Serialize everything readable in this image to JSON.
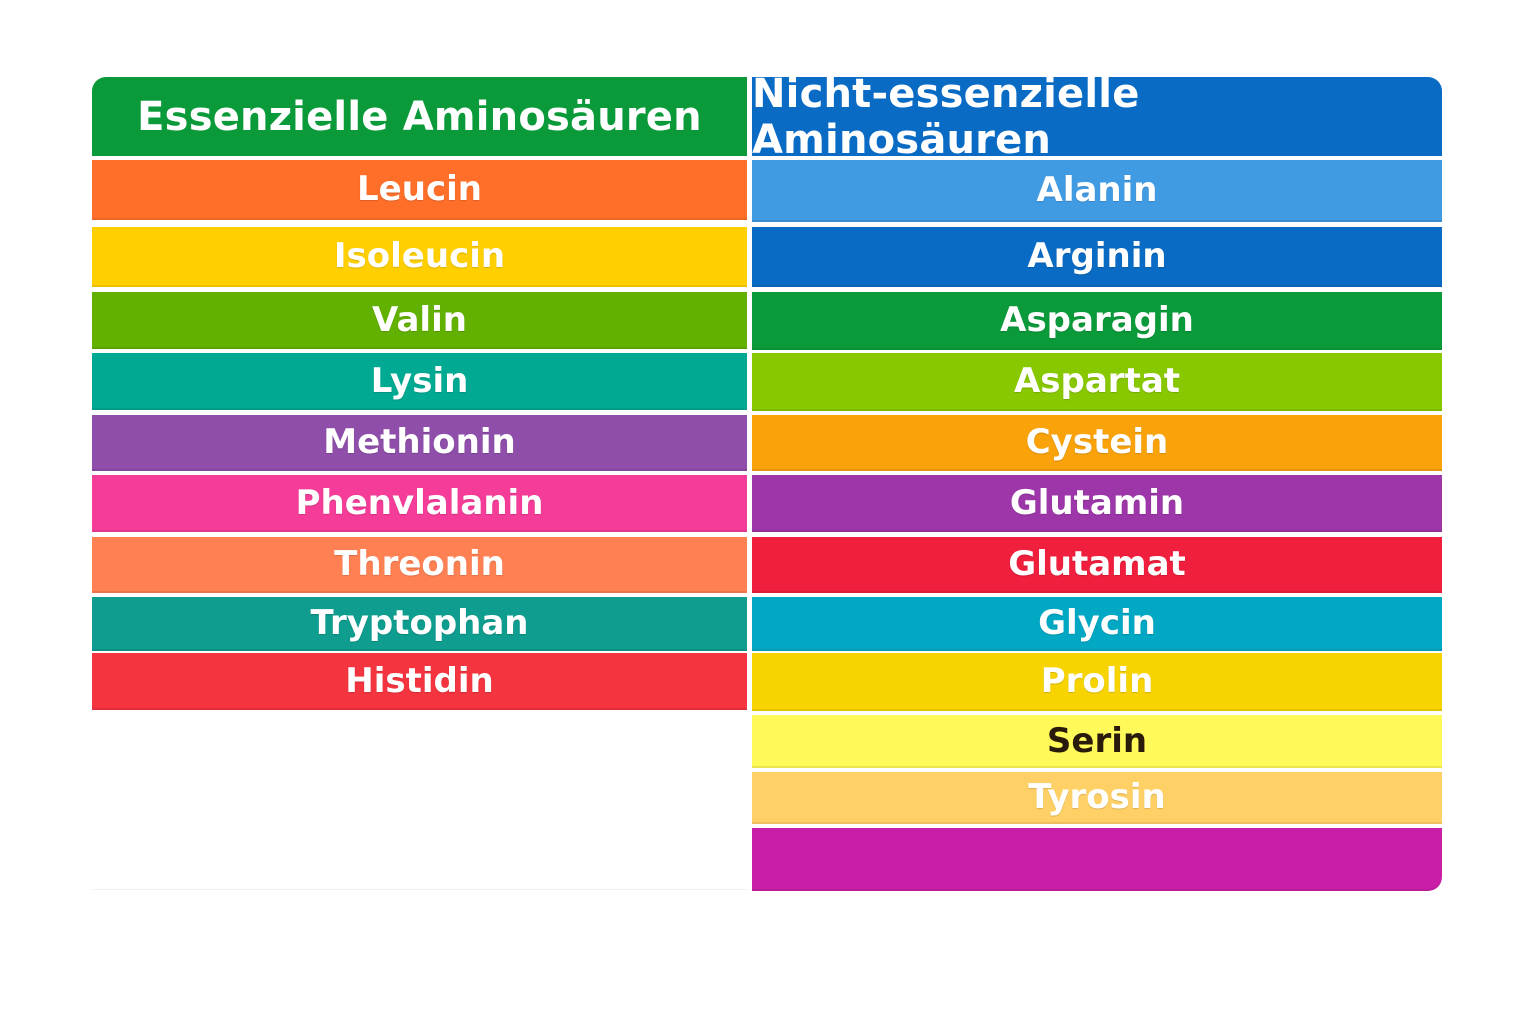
{
  "essential": {
    "header": "Essenzielle Aminosäuren",
    "header_color": "#0a9a3a",
    "items": [
      {
        "label": "Leucin",
        "color": "#ff6f2a"
      },
      {
        "label": "Isoleucin",
        "color": "#ffcf00"
      },
      {
        "label": "Valin",
        "color": "#62b100"
      },
      {
        "label": "Lysin",
        "color": "#00aa92"
      },
      {
        "label": "Methionin",
        "color": "#8e4eaa"
      },
      {
        "label": "Phenvlalanin",
        "color": "#f43c98"
      },
      {
        "label": "Threonin",
        "color": "#ff8153"
      },
      {
        "label": "Tryptophan",
        "color": "#0f9d8f"
      },
      {
        "label": "Histidin",
        "color": "#f4343f"
      }
    ]
  },
  "non_essential": {
    "header": "Nicht-essenzielle Aminosäuren",
    "header_color": "#0a6bc4",
    "items": [
      {
        "label": "Alanin",
        "color": "#419be3"
      },
      {
        "label": "Arginin",
        "color": "#0a6bc4"
      },
      {
        "label": "Asparagin",
        "color": "#0a9a3a"
      },
      {
        "label": "Aspartat",
        "color": "#88c800"
      },
      {
        "label": "Cystein",
        "color": "#f9a20a"
      },
      {
        "label": "Glutamin",
        "color": "#9d36a8"
      },
      {
        "label": "Glutamat",
        "color": "#ef1f3d"
      },
      {
        "label": "Glycin",
        "color": "#00a8c4"
      },
      {
        "label": "Prolin",
        "color": "#f7d300"
      },
      {
        "label": "Serin",
        "color": "#fff95a"
      },
      {
        "label": "Tyrosin",
        "color": "#ffd066"
      },
      {
        "label": "",
        "color": "#c91ea7"
      }
    ]
  }
}
